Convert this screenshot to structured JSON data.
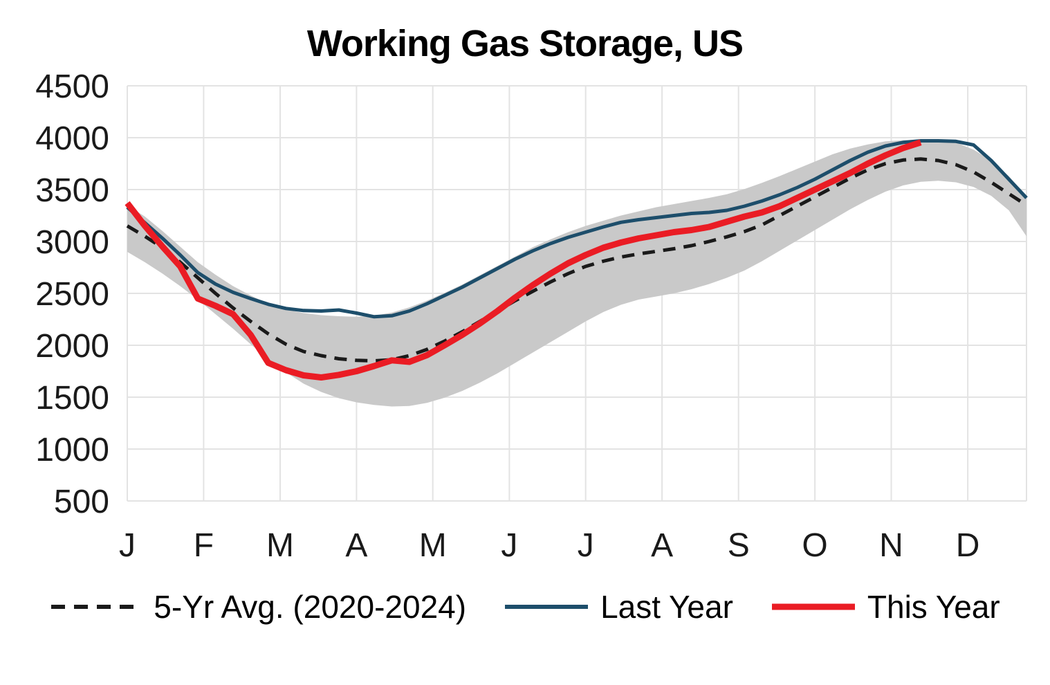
{
  "chart_data": {
    "type": "line",
    "title": "Working Gas Storage, US",
    "ylabel": "",
    "xlabel": "",
    "ylim": [
      500,
      4500
    ],
    "xlim": [
      0,
      51
    ],
    "x_unit": "week-of-year",
    "grid": true,
    "legend_position": "bottom",
    "y_ticks": [
      500,
      1000,
      1500,
      2000,
      2500,
      3000,
      3500,
      4000,
      4500
    ],
    "x_tick_labels": [
      "J",
      "F",
      "M",
      "A",
      "M",
      "J",
      "J",
      "A",
      "S",
      "O",
      "N",
      "D"
    ],
    "x_tick_weeks": [
      0,
      4.33,
      8.67,
      13,
      17.33,
      21.67,
      26,
      30.33,
      34.67,
      39,
      43.33,
      47.67
    ],
    "colors": {
      "grid": "#e3e3e3",
      "band": "#c9c9c9",
      "text": "#1a1a1a"
    },
    "band": {
      "name": "5-yr min-max range",
      "high": [
        3350,
        3240,
        3100,
        2950,
        2800,
        2680,
        2570,
        2480,
        2400,
        2345,
        2310,
        2290,
        2280,
        2275,
        2285,
        2315,
        2365,
        2430,
        2505,
        2585,
        2675,
        2765,
        2855,
        2945,
        3020,
        3090,
        3150,
        3200,
        3250,
        3290,
        3330,
        3360,
        3390,
        3420,
        3455,
        3505,
        3565,
        3630,
        3700,
        3770,
        3840,
        3895,
        3935,
        3965,
        3975,
        3980,
        3975,
        3955,
        3885,
        3780,
        3630,
        3430
      ],
      "low": [
        2900,
        2800,
        2690,
        2570,
        2440,
        2300,
        2160,
        2010,
        1870,
        1740,
        1630,
        1550,
        1490,
        1450,
        1425,
        1410,
        1415,
        1445,
        1495,
        1560,
        1640,
        1730,
        1830,
        1930,
        2030,
        2130,
        2230,
        2320,
        2390,
        2440,
        2470,
        2500,
        2540,
        2590,
        2650,
        2720,
        2810,
        2910,
        3010,
        3110,
        3210,
        3310,
        3400,
        3480,
        3540,
        3575,
        3585,
        3570,
        3525,
        3440,
        3300,
        3050
      ]
    },
    "series": [
      {
        "name": "5-Yr Avg. (2020-2024)",
        "style": "dashed",
        "color": "#1a1a1a",
        "width": 5,
        "values": [
          3150,
          3050,
          2940,
          2800,
          2650,
          2500,
          2360,
          2230,
          2110,
          2010,
          1940,
          1900,
          1870,
          1855,
          1850,
          1860,
          1900,
          1960,
          2040,
          2130,
          2230,
          2330,
          2430,
          2520,
          2610,
          2690,
          2760,
          2810,
          2850,
          2880,
          2905,
          2930,
          2960,
          3000,
          3045,
          3095,
          3160,
          3250,
          3340,
          3430,
          3520,
          3610,
          3690,
          3750,
          3785,
          3795,
          3780,
          3740,
          3670,
          3570,
          3460,
          3350
        ]
      },
      {
        "name": "Last Year",
        "style": "solid",
        "color": "#1d4e6b",
        "width": 5,
        "values": [
          3330,
          3180,
          3030,
          2870,
          2700,
          2590,
          2510,
          2450,
          2395,
          2355,
          2335,
          2330,
          2340,
          2310,
          2275,
          2285,
          2330,
          2400,
          2480,
          2560,
          2650,
          2740,
          2830,
          2910,
          2980,
          3040,
          3090,
          3140,
          3185,
          3210,
          3230,
          3250,
          3270,
          3280,
          3300,
          3340,
          3390,
          3450,
          3520,
          3600,
          3690,
          3780,
          3860,
          3920,
          3955,
          3970,
          3970,
          3965,
          3930,
          3780,
          3600,
          3420
        ]
      },
      {
        "name": "This Year",
        "style": "solid",
        "color": "#ea1c24",
        "width": 9,
        "values": [
          3370,
          3150,
          2950,
          2760,
          2450,
          2380,
          2300,
          2100,
          1830,
          1760,
          1710,
          1690,
          1715,
          1750,
          1800,
          1855,
          1840,
          1905,
          2000,
          2100,
          2210,
          2330,
          2460,
          2580,
          2690,
          2790,
          2870,
          2940,
          2990,
          3030,
          3060,
          3090,
          3110,
          3140,
          3190,
          3240,
          3280,
          3340,
          3420,
          3500,
          3580,
          3660,
          3750,
          3830,
          3900,
          3955
        ]
      }
    ]
  }
}
